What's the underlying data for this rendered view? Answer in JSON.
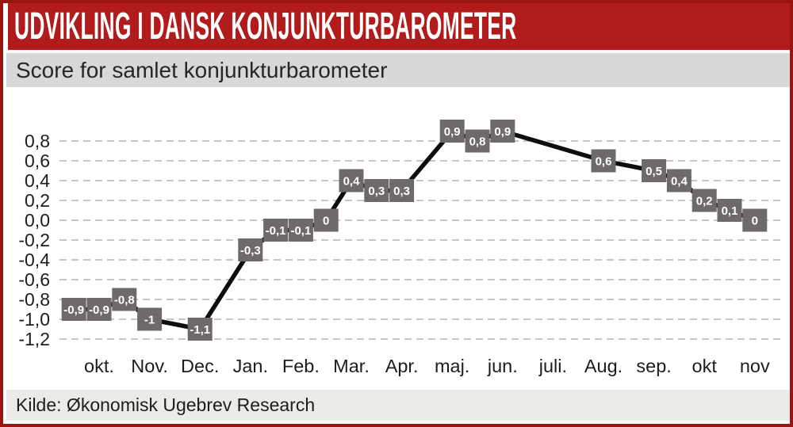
{
  "header": {
    "title": "UDVIKLING I DANSK KONJUNKTURBAROMETER"
  },
  "subtitle": "Score for samlet konjunkturbarometer",
  "footer": {
    "source": "Kilde: Økonomisk Ugebrev Research"
  },
  "colors": {
    "border_red": "#9a1412",
    "header_red": "#b21b1b",
    "subtitle_band": "#d8d8db",
    "footer_band": "#edebe8",
    "grid_line": "#c9c5c2",
    "series_line": "#0e0e0e",
    "marker_box": "#6e6a6a",
    "marker_text": "#ffffff",
    "axis_text": "#1d1d1b"
  },
  "chart_data": {
    "type": "line",
    "title": "Score for samlet konjunkturbarometer",
    "xlabel": "",
    "ylabel": "",
    "grid": "horizontal-dashed",
    "legend": "none",
    "ylim": [
      -1.2,
      0.95
    ],
    "x_tick_labels": [
      "okt.",
      "Nov.",
      "Dec.",
      "Jan.",
      "Feb.",
      "Mar.",
      "Apr.",
      "maj.",
      "jun.",
      "juli.",
      "Aug.",
      "sep.",
      "okt",
      "nov"
    ],
    "y_tick_labels": [
      "0,8",
      "0,6",
      "0,4",
      "0,2",
      "0,0",
      "-0,2",
      "-0,4",
      "-0,6",
      "-0,8",
      "-1,0",
      "-1,2"
    ],
    "y_tick_values": [
      0.8,
      0.6,
      0.4,
      0.2,
      0.0,
      -0.2,
      -0.4,
      -0.6,
      -0.8,
      -1.0,
      -1.2
    ],
    "series": [
      {
        "points": [
          {
            "x_month": -0.5,
            "y": -0.9,
            "label": "-0,9"
          },
          {
            "x_month": 0,
            "y": -0.9,
            "label": "-0,9"
          },
          {
            "x_month": 0.5,
            "y": -0.8,
            "label": "-0,8"
          },
          {
            "x_month": 1,
            "y": -1.0,
            "label": "-1"
          },
          {
            "x_month": 2,
            "y": -1.1,
            "label": "-1,1"
          },
          {
            "x_month": 3,
            "y": -0.3,
            "label": "-0,3"
          },
          {
            "x_month": 3.5,
            "y": -0.1,
            "label": "-0,1"
          },
          {
            "x_month": 4,
            "y": -0.1,
            "label": "-0,1"
          },
          {
            "x_month": 4.5,
            "y": 0.0,
            "label": "0"
          },
          {
            "x_month": 5,
            "y": 0.4,
            "label": "0,4"
          },
          {
            "x_month": 5.5,
            "y": 0.3,
            "label": "0,3"
          },
          {
            "x_month": 6,
            "y": 0.3,
            "label": "0,3"
          },
          {
            "x_month": 7,
            "y": 0.9,
            "label": "0,9"
          },
          {
            "x_month": 7.5,
            "y": 0.8,
            "label": "0,8"
          },
          {
            "x_month": 8,
            "y": 0.9,
            "label": "0,9"
          },
          {
            "x_month": 10,
            "y": 0.6,
            "label": "0,6"
          },
          {
            "x_month": 11,
            "y": 0.5,
            "label": "0,5"
          },
          {
            "x_month": 11.5,
            "y": 0.4,
            "label": "0,4"
          },
          {
            "x_month": 12,
            "y": 0.2,
            "label": "0,2"
          },
          {
            "x_month": 12.5,
            "y": 0.1,
            "label": "0,1"
          },
          {
            "x_month": 13,
            "y": 0.0,
            "label": "0"
          }
        ]
      }
    ]
  }
}
